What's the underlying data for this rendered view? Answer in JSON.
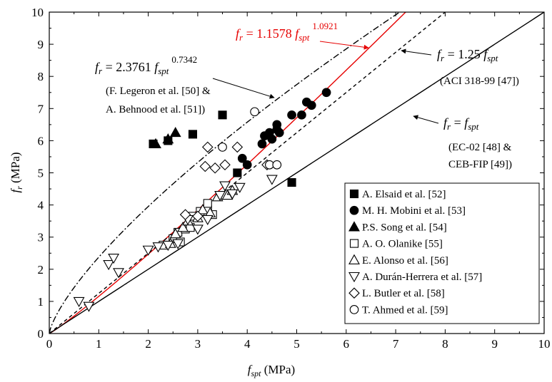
{
  "chart_data": {
    "type": "scatter",
    "xlabel_base": "f",
    "xlabel_sub": "spt",
    "xlabel_unit": " (MPa)",
    "ylabel_base": "f",
    "ylabel_sub": "r",
    "ylabel_unit": " (MPa)",
    "xlim": [
      0,
      10
    ],
    "ylim": [
      0,
      10
    ],
    "x_ticks": [
      "0",
      "1",
      "2",
      "3",
      "4",
      "5",
      "6",
      "7",
      "8",
      "9",
      "10"
    ],
    "y_ticks": [
      "0",
      "1",
      "2",
      "3",
      "4",
      "5",
      "6",
      "7",
      "8",
      "9",
      "10"
    ],
    "grid": false,
    "legend_position": "bottom-right",
    "curves": [
      {
        "id": "fit",
        "label": "f_r = 1.1578 f_spt^1.0921",
        "coef": 1.1578,
        "exp": 1.0921,
        "color": "#e60000",
        "dash": "none"
      },
      {
        "id": "aci",
        "label": "f_r = 1.25 f_spt",
        "coef": 1.25,
        "exp": 1.0,
        "color": "#000000",
        "dash": "5,4"
      },
      {
        "id": "legeron",
        "label": "f_r = 2.3761 f_spt^0.7342",
        "coef": 2.3761,
        "exp": 0.7342,
        "color": "#000000",
        "dash": "9,3,2,3"
      },
      {
        "id": "ec",
        "label": "f_r = f_spt",
        "coef": 1.0,
        "exp": 1.0,
        "color": "#000000",
        "dash": "none"
      }
    ],
    "annotations": {
      "fit": {
        "base": "f",
        "sub1": "r",
        "mid": " = 1.1578 ",
        "sub2": "spt",
        "exp": "1.0921"
      },
      "legeron": {
        "base": "f",
        "sub1": "r",
        "mid": " = 2.3761 ",
        "sub2": "spt",
        "exp": "0.7342",
        "ref1": "(F. Legeron et al. [50] &",
        "ref2": "A. Behnood et al. [51])"
      },
      "aci": {
        "base": "f",
        "sub1": "r",
        "mid": " = 1.25 ",
        "sub2": "spt",
        "ref1": "(ACI 318-99 [47])"
      },
      "ec": {
        "base": "f",
        "sub1": "r",
        "mid": " = ",
        "sub2": "spt",
        "ref1": "(EC-02 [48] &",
        "ref2": "CEB-FIP [49])"
      }
    },
    "series": [
      {
        "name": "A. Elsaid et al. [52]",
        "marker": "square-filled",
        "points": [
          [
            2.1,
            5.9
          ],
          [
            2.4,
            6.0
          ],
          [
            2.9,
            6.2
          ],
          [
            3.5,
            6.8
          ],
          [
            3.8,
            5.0
          ],
          [
            4.9,
            4.7
          ]
        ]
      },
      {
        "name": "M. H. Mobini et al. [53]",
        "marker": "circle-filled",
        "points": [
          [
            3.9,
            5.45
          ],
          [
            4.0,
            5.25
          ],
          [
            4.3,
            5.9
          ],
          [
            4.35,
            6.15
          ],
          [
            4.45,
            6.25
          ],
          [
            4.5,
            6.05
          ],
          [
            4.6,
            6.5
          ],
          [
            4.6,
            6.35
          ],
          [
            4.65,
            6.25
          ],
          [
            4.9,
            6.8
          ],
          [
            5.1,
            6.8
          ],
          [
            5.2,
            7.2
          ],
          [
            5.3,
            7.1
          ],
          [
            5.6,
            7.5
          ]
        ]
      },
      {
        "name": "P.S. Song et al. [54]",
        "marker": "triangle-up-filled",
        "points": [
          [
            2.15,
            5.9
          ],
          [
            2.4,
            6.05
          ],
          [
            2.55,
            6.25
          ]
        ]
      },
      {
        "name": "A. O. Olanike [55]",
        "marker": "square-open",
        "points": [
          [
            2.3,
            2.75
          ],
          [
            2.5,
            2.95
          ],
          [
            2.6,
            3.15
          ],
          [
            2.65,
            2.85
          ],
          [
            2.75,
            3.25
          ],
          [
            2.85,
            3.3
          ],
          [
            2.9,
            3.65
          ],
          [
            3.05,
            3.8
          ],
          [
            3.2,
            3.85
          ],
          [
            3.2,
            4.05
          ],
          [
            3.3,
            3.7
          ]
        ]
      },
      {
        "name": "E. Alonso et al. [56]",
        "marker": "triangle-up-open",
        "points": [
          [
            2.45,
            2.8
          ],
          [
            2.55,
            3.1
          ],
          [
            2.7,
            3.3
          ],
          [
            2.8,
            3.5
          ],
          [
            3.0,
            3.6
          ],
          [
            3.1,
            3.85
          ],
          [
            3.25,
            3.75
          ],
          [
            3.4,
            4.25
          ],
          [
            3.6,
            4.3
          ],
          [
            3.7,
            4.45
          ]
        ]
      },
      {
        "name": "A. Durán-Herrera et al. [57]",
        "marker": "triangle-down-open",
        "points": [
          [
            0.6,
            1.0
          ],
          [
            0.8,
            0.85
          ],
          [
            1.2,
            2.15
          ],
          [
            1.3,
            2.35
          ],
          [
            1.4,
            1.9
          ],
          [
            2.0,
            2.6
          ],
          [
            2.2,
            2.7
          ],
          [
            2.4,
            2.75
          ],
          [
            2.6,
            2.8
          ],
          [
            2.8,
            3.55
          ],
          [
            3.0,
            3.25
          ],
          [
            3.2,
            3.55
          ],
          [
            3.45,
            4.3
          ],
          [
            3.55,
            4.6
          ],
          [
            3.7,
            4.35
          ],
          [
            3.85,
            4.55
          ],
          [
            4.5,
            4.8
          ]
        ]
      },
      {
        "name": "L. Butler et al. [58]",
        "marker": "diamond-open",
        "points": [
          [
            2.75,
            3.7
          ],
          [
            3.0,
            3.65
          ],
          [
            3.15,
            5.2
          ],
          [
            3.2,
            5.8
          ],
          [
            3.35,
            5.15
          ],
          [
            3.55,
            5.25
          ],
          [
            3.8,
            5.8
          ],
          [
            4.4,
            5.25
          ]
        ]
      },
      {
        "name": "T. Ahmed et al. [59]",
        "marker": "circle-open",
        "points": [
          [
            3.5,
            5.8
          ],
          [
            4.15,
            6.9
          ],
          [
            4.45,
            5.25
          ],
          [
            4.6,
            5.25
          ]
        ]
      }
    ]
  }
}
